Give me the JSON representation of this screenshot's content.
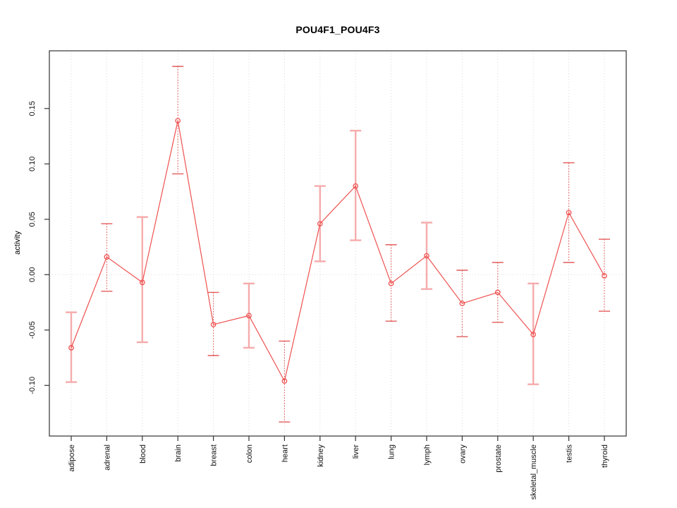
{
  "chart_data": {
    "type": "line",
    "title": "POU4F1_POU4F3",
    "xlabel": "",
    "ylabel": "activity",
    "categories": [
      "adipose",
      "adrenal",
      "blood",
      "brain",
      "breast",
      "colon",
      "heart",
      "kidney",
      "liver",
      "lung",
      "lymph",
      "ovary",
      "prostate",
      "skeletal_muscle",
      "testis",
      "thyroid"
    ],
    "series": [
      {
        "name": "activity",
        "values": [
          -0.066,
          0.016,
          -0.007,
          0.139,
          -0.045,
          -0.037,
          -0.096,
          0.046,
          0.08,
          -0.008,
          0.017,
          -0.026,
          -0.016,
          -0.054,
          0.056,
          -0.001
        ],
        "ci_lower": [
          -0.097,
          -0.015,
          -0.061,
          0.091,
          -0.073,
          -0.066,
          -0.133,
          0.012,
          0.031,
          -0.042,
          -0.013,
          -0.056,
          -0.043,
          -0.099,
          0.011,
          -0.033
        ],
        "ci_upper": [
          -0.034,
          0.046,
          0.052,
          0.188,
          -0.016,
          -0.008,
          -0.06,
          0.08,
          0.13,
          0.027,
          0.047,
          0.004,
          0.011,
          -0.008,
          0.101,
          0.032
        ],
        "ci_styles": [
          "light",
          "dashed",
          "light",
          "dashed",
          "dashed",
          "light",
          "dashed",
          "light",
          "light",
          "dashed",
          "light",
          "dashed",
          "dashed",
          "light",
          "dashed",
          "dashed"
        ]
      }
    ],
    "yticks": [
      -0.1,
      -0.05,
      0.0,
      0.05,
      0.1,
      0.15
    ],
    "ytick_labels": [
      "-0.10",
      "-0.05",
      "0.00",
      "0.05",
      "0.10",
      "0.15"
    ],
    "ylim": [
      -0.1457,
      0.2021
    ],
    "zero_line": 0,
    "grid": {
      "vertical_per_category": true,
      "horizontal_at_zero": true,
      "style": "dotted"
    },
    "legend": "none",
    "colors": {
      "line": "#ee5250",
      "point": "#ee5250",
      "ci_light": "#f6abab",
      "ci_dashed": "#e25c5a",
      "grid": "#d8d8d8",
      "frame": "#333333",
      "text": "#111111"
    }
  }
}
